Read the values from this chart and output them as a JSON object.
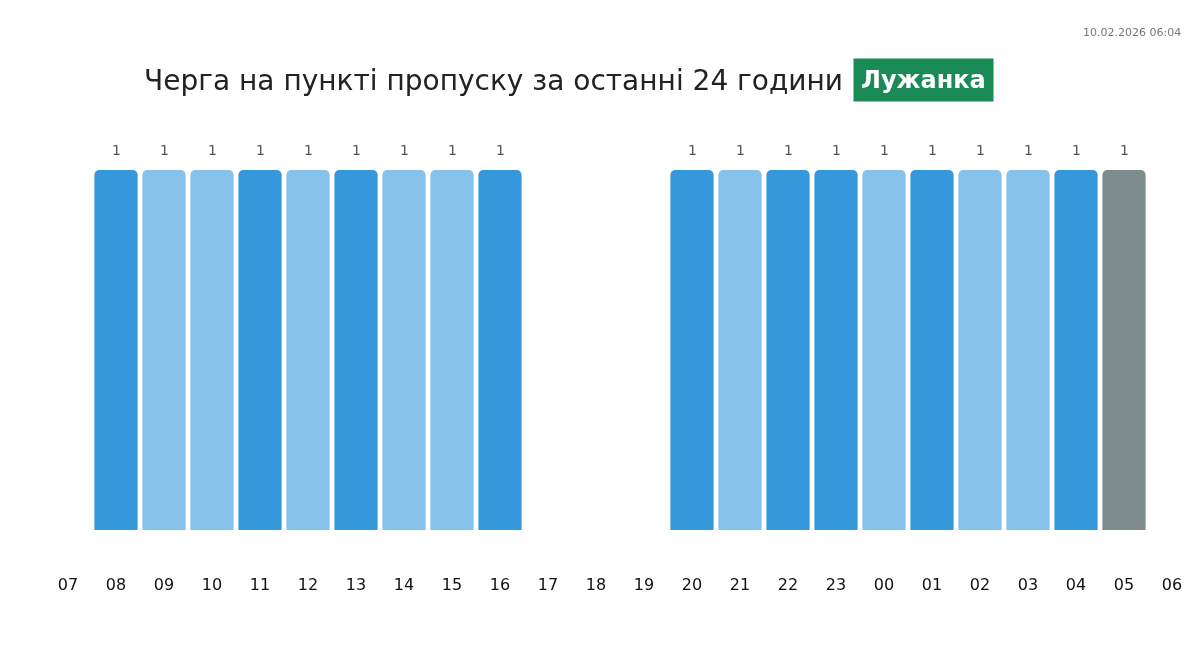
{
  "chart_data": {
    "type": "bar",
    "title": "Черга на пункті пропуску за останні 24 години",
    "subtitle": "Лужанка",
    "annotations": [
      "10.02.2026 06:04"
    ],
    "categories": [
      "07",
      "08",
      "09",
      "10",
      "11",
      "12",
      "13",
      "14",
      "15",
      "16",
      "17",
      "18",
      "19",
      "20",
      "21",
      "22",
      "23",
      "00",
      "01",
      "02",
      "03",
      "04",
      "05",
      "06"
    ],
    "values": [
      null,
      1,
      1,
      1,
      1,
      1,
      1,
      1,
      1,
      1,
      null,
      null,
      null,
      1,
      1,
      1,
      1,
      1,
      1,
      1,
      1,
      1,
      1,
      null
    ],
    "colors": [
      null,
      "#3498db",
      "#85c1e9",
      "#85c1e9",
      "#3498db",
      "#85c1e9",
      "#3498db",
      "#85c1e9",
      "#85c1e9",
      "#3498db",
      null,
      null,
      null,
      "#3498db",
      "#85c1e9",
      "#3498db",
      "#3498db",
      "#85c1e9",
      "#3498db",
      "#85c1e9",
      "#85c1e9",
      "#3498db",
      "#7f8c8d",
      null
    ],
    "ylim": [
      0,
      1
    ],
    "data_labels": true,
    "tick_labels": "x"
  }
}
